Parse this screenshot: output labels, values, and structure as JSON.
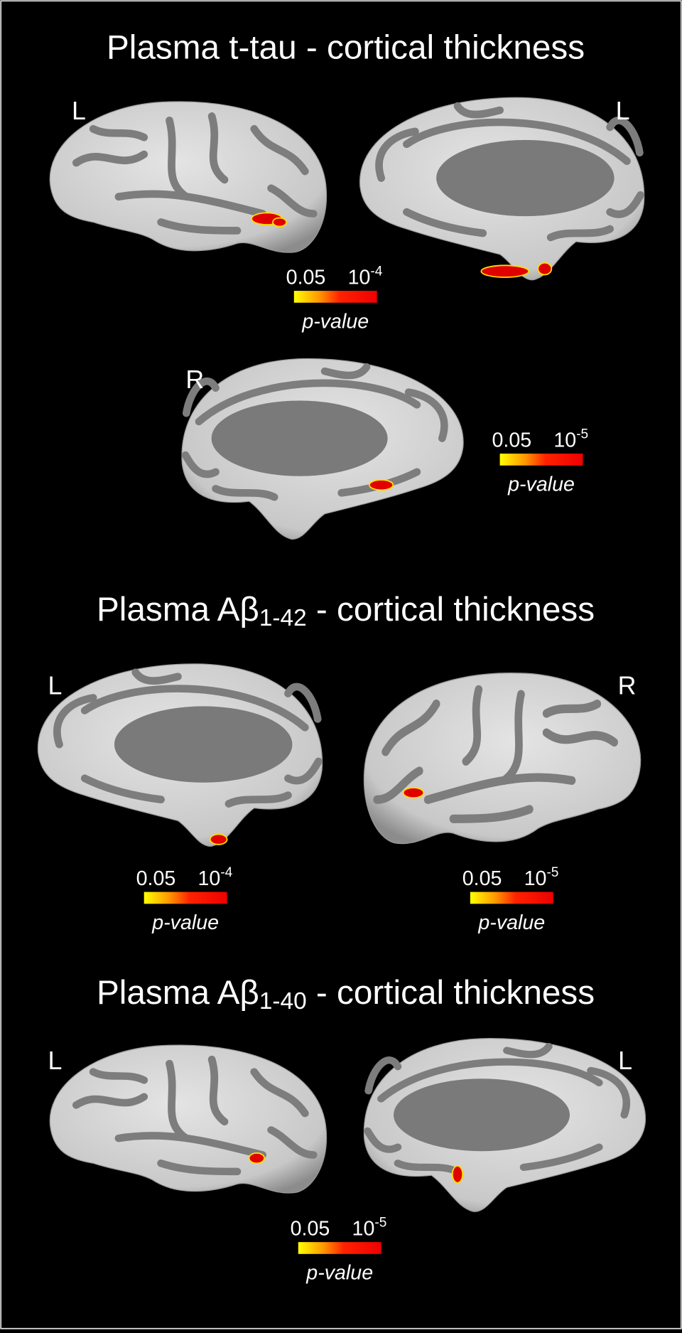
{
  "sections": [
    {
      "title": {
        "text": "Plasma t-tau - cortical thickness"
      },
      "panels": [
        {
          "label": "L"
        },
        {
          "label": "L"
        },
        {
          "label": "R"
        }
      ],
      "colorbars": [
        {
          "min_label": "0.05",
          "max_label": {
            "base": "10",
            "exponent": "-4"
          },
          "axis_label": "p-value"
        },
        {
          "min_label": "0.05",
          "max_label": {
            "base": "10",
            "exponent": "-5"
          },
          "axis_label": "p-value"
        }
      ]
    },
    {
      "title": {
        "prefix": "Plasma Aβ",
        "subscript": "1-42",
        "suffix": " - cortical thickness"
      },
      "panels": [
        {
          "label": "L"
        },
        {
          "label": "R"
        }
      ],
      "colorbars": [
        {
          "min_label": "0.05",
          "max_label": {
            "base": "10",
            "exponent": "-4"
          },
          "axis_label": "p-value"
        },
        {
          "min_label": "0.05",
          "max_label": {
            "base": "10",
            "exponent": "-5"
          },
          "axis_label": "p-value"
        }
      ]
    },
    {
      "title": {
        "prefix": "Plasma Aβ",
        "subscript": "1-40",
        "suffix": " - cortical thickness"
      },
      "panels": [
        {
          "label": "L"
        },
        {
          "label": "L"
        }
      ],
      "colorbars": [
        {
          "min_label": "0.05",
          "max_label": {
            "base": "10",
            "exponent": "-5"
          },
          "axis_label": "p-value"
        }
      ]
    }
  ]
}
